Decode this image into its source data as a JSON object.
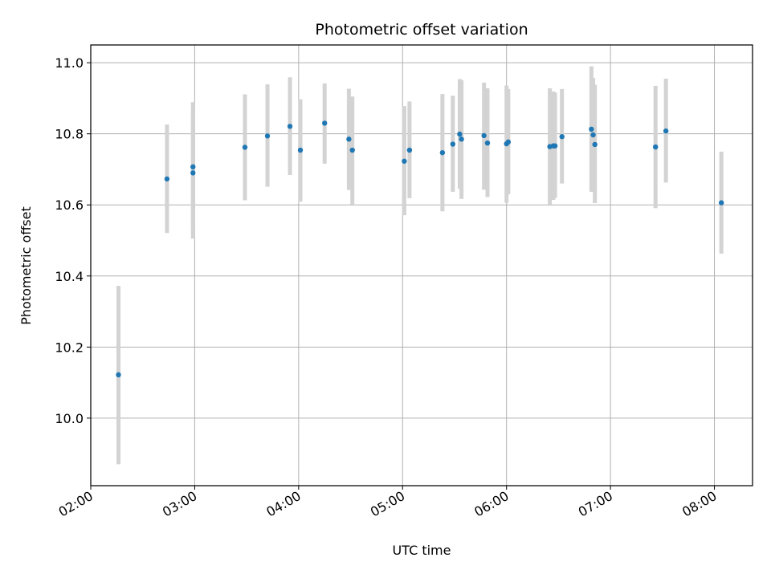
{
  "chart_data": {
    "type": "scatter",
    "title": "Photometric offset variation",
    "xlabel": "UTC time",
    "ylabel": "Photometric offset",
    "xlim": [
      "02:00",
      "08:22"
    ],
    "ylim": [
      9.81,
      11.05
    ],
    "grid": true,
    "x_ticks": [
      "02:00",
      "03:00",
      "04:00",
      "05:00",
      "06:00",
      "07:00",
      "08:00"
    ],
    "y_ticks": [
      "10.0",
      "10.2",
      "10.4",
      "10.6",
      "10.8",
      "11.0"
    ],
    "series": [
      {
        "point_color": "#1f77b4",
        "errorbar_color": "#d3d3d3",
        "points": [
          {
            "x": "02:16",
            "y": 10.122,
            "ylo": 9.87,
            "yhi": 10.372
          },
          {
            "x": "02:44",
            "y": 10.673,
            "ylo": 10.521,
            "yhi": 10.826
          },
          {
            "x": "02:59",
            "y": 10.69,
            "ylo": 10.505,
            "yhi": 10.875
          },
          {
            "x": "02:59",
            "y": 10.707,
            "ylo": 10.525,
            "yhi": 10.889
          },
          {
            "x": "03:29",
            "y": 10.762,
            "ylo": 10.613,
            "yhi": 10.911
          },
          {
            "x": "03:42",
            "y": 10.794,
            "ylo": 10.651,
            "yhi": 10.939
          },
          {
            "x": "03:55",
            "y": 10.821,
            "ylo": 10.684,
            "yhi": 10.959
          },
          {
            "x": "04:01",
            "y": 10.754,
            "ylo": 10.609,
            "yhi": 10.897
          },
          {
            "x": "04:15",
            "y": 10.83,
            "ylo": 10.716,
            "yhi": 10.942
          },
          {
            "x": "04:29",
            "y": 10.785,
            "ylo": 10.642,
            "yhi": 10.927
          },
          {
            "x": "04:31",
            "y": 10.754,
            "ylo": 10.601,
            "yhi": 10.905
          },
          {
            "x": "05:01",
            "y": 10.723,
            "ylo": 10.571,
            "yhi": 10.878
          },
          {
            "x": "05:04",
            "y": 10.754,
            "ylo": 10.619,
            "yhi": 10.891
          },
          {
            "x": "05:23",
            "y": 10.747,
            "ylo": 10.582,
            "yhi": 10.912
          },
          {
            "x": "05:29",
            "y": 10.771,
            "ylo": 10.637,
            "yhi": 10.907
          },
          {
            "x": "05:33",
            "y": 10.799,
            "ylo": 10.645,
            "yhi": 10.954
          },
          {
            "x": "05:34",
            "y": 10.785,
            "ylo": 10.617,
            "yhi": 10.951
          },
          {
            "x": "05:47",
            "y": 10.795,
            "ylo": 10.643,
            "yhi": 10.944
          },
          {
            "x": "05:49",
            "y": 10.774,
            "ylo": 10.622,
            "yhi": 10.928
          },
          {
            "x": "06:00",
            "y": 10.772,
            "ylo": 10.606,
            "yhi": 10.936
          },
          {
            "x": "06:01",
            "y": 10.777,
            "ylo": 10.63,
            "yhi": 10.926
          },
          {
            "x": "06:25",
            "y": 10.764,
            "ylo": 10.601,
            "yhi": 10.928
          },
          {
            "x": "06:27",
            "y": 10.766,
            "ylo": 10.614,
            "yhi": 10.919
          },
          {
            "x": "06:28",
            "y": 10.766,
            "ylo": 10.62,
            "yhi": 10.916
          },
          {
            "x": "06:32",
            "y": 10.792,
            "ylo": 10.66,
            "yhi": 10.926
          },
          {
            "x": "06:49",
            "y": 10.813,
            "ylo": 10.637,
            "yhi": 10.99
          },
          {
            "x": "06:50",
            "y": 10.797,
            "ylo": 10.637,
            "yhi": 10.957
          },
          {
            "x": "06:51",
            "y": 10.77,
            "ylo": 10.605,
            "yhi": 10.938
          },
          {
            "x": "07:26",
            "y": 10.763,
            "ylo": 10.591,
            "yhi": 10.935
          },
          {
            "x": "07:32",
            "y": 10.808,
            "ylo": 10.663,
            "yhi": 10.955
          },
          {
            "x": "08:04",
            "y": 10.606,
            "ylo": 10.463,
            "yhi": 10.75
          }
        ]
      }
    ]
  }
}
